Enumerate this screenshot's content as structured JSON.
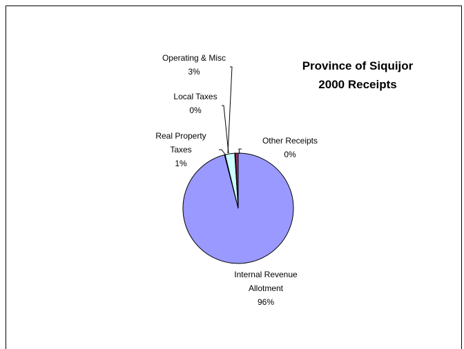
{
  "chart_data": {
    "type": "pie",
    "title_lines": [
      "Province of Siquijor",
      "2000 Receipts"
    ],
    "slices": [
      {
        "name_lines": [
          "Internal Revenue",
          "Allotment"
        ],
        "percent_label": "96%",
        "value": 96.0,
        "color": "#9999ff"
      },
      {
        "name_lines": [
          "Other Receipts"
        ],
        "percent_label": "0%",
        "value": 0.2,
        "color": "#cc99ff"
      },
      {
        "name_lines": [
          "Operating & Misc"
        ],
        "percent_label": "3%",
        "value": 2.8,
        "color": "#ccffff"
      },
      {
        "name_lines": [
          "Local Taxes"
        ],
        "percent_label": "0%",
        "value": 0.2,
        "color": "#ffffcc"
      },
      {
        "name_lines": [
          "Real Property",
          "Taxes"
        ],
        "percent_label": "1%",
        "value": 0.8,
        "color": "#993366"
      }
    ]
  }
}
